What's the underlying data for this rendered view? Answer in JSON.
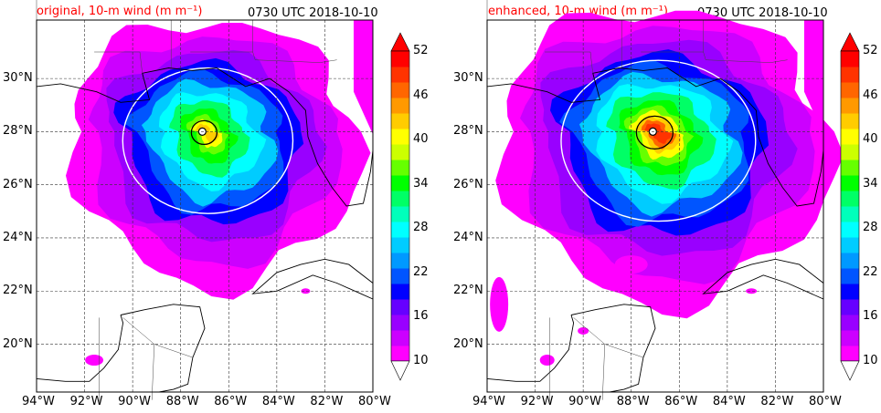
{
  "panels": [
    {
      "title": "original, 10-m wind (m m⁻¹)",
      "time": "0730 UTC 2018-10-10"
    },
    {
      "title": "enhanced, 10-m wind (m m⁻¹)",
      "time": "0730 UTC 2018-10-10"
    }
  ],
  "lon_ticks": [
    "94°W",
    "92°W",
    "90°W",
    "88°W",
    "86°W",
    "84°W",
    "82°W",
    "80°W"
  ],
  "lat_ticks": [
    "30°N",
    "28°N",
    "26°N",
    "24°N",
    "22°N",
    "20°N"
  ],
  "colorbar": {
    "labels": [
      "52",
      "46",
      "40",
      "34",
      "28",
      "22",
      "16",
      "10"
    ],
    "min": 10,
    "max": 52,
    "colors": [
      "#ff00ff",
      "#cc00ff",
      "#9900ff",
      "#6600ff",
      "#0000ff",
      "#0055ff",
      "#0099ff",
      "#00ccff",
      "#00ffff",
      "#00ffbb",
      "#00ff66",
      "#00ff00",
      "#66ff00",
      "#ccff00",
      "#ffff00",
      "#ffcc00",
      "#ff9900",
      "#ff6600",
      "#ff3300",
      "#ff0000"
    ],
    "under_color": "#ffffff",
    "over_color": "#ff0000"
  },
  "map": {
    "lon_range": [
      -94,
      -80
    ],
    "lat_range": [
      18.2,
      32.2
    ]
  }
}
